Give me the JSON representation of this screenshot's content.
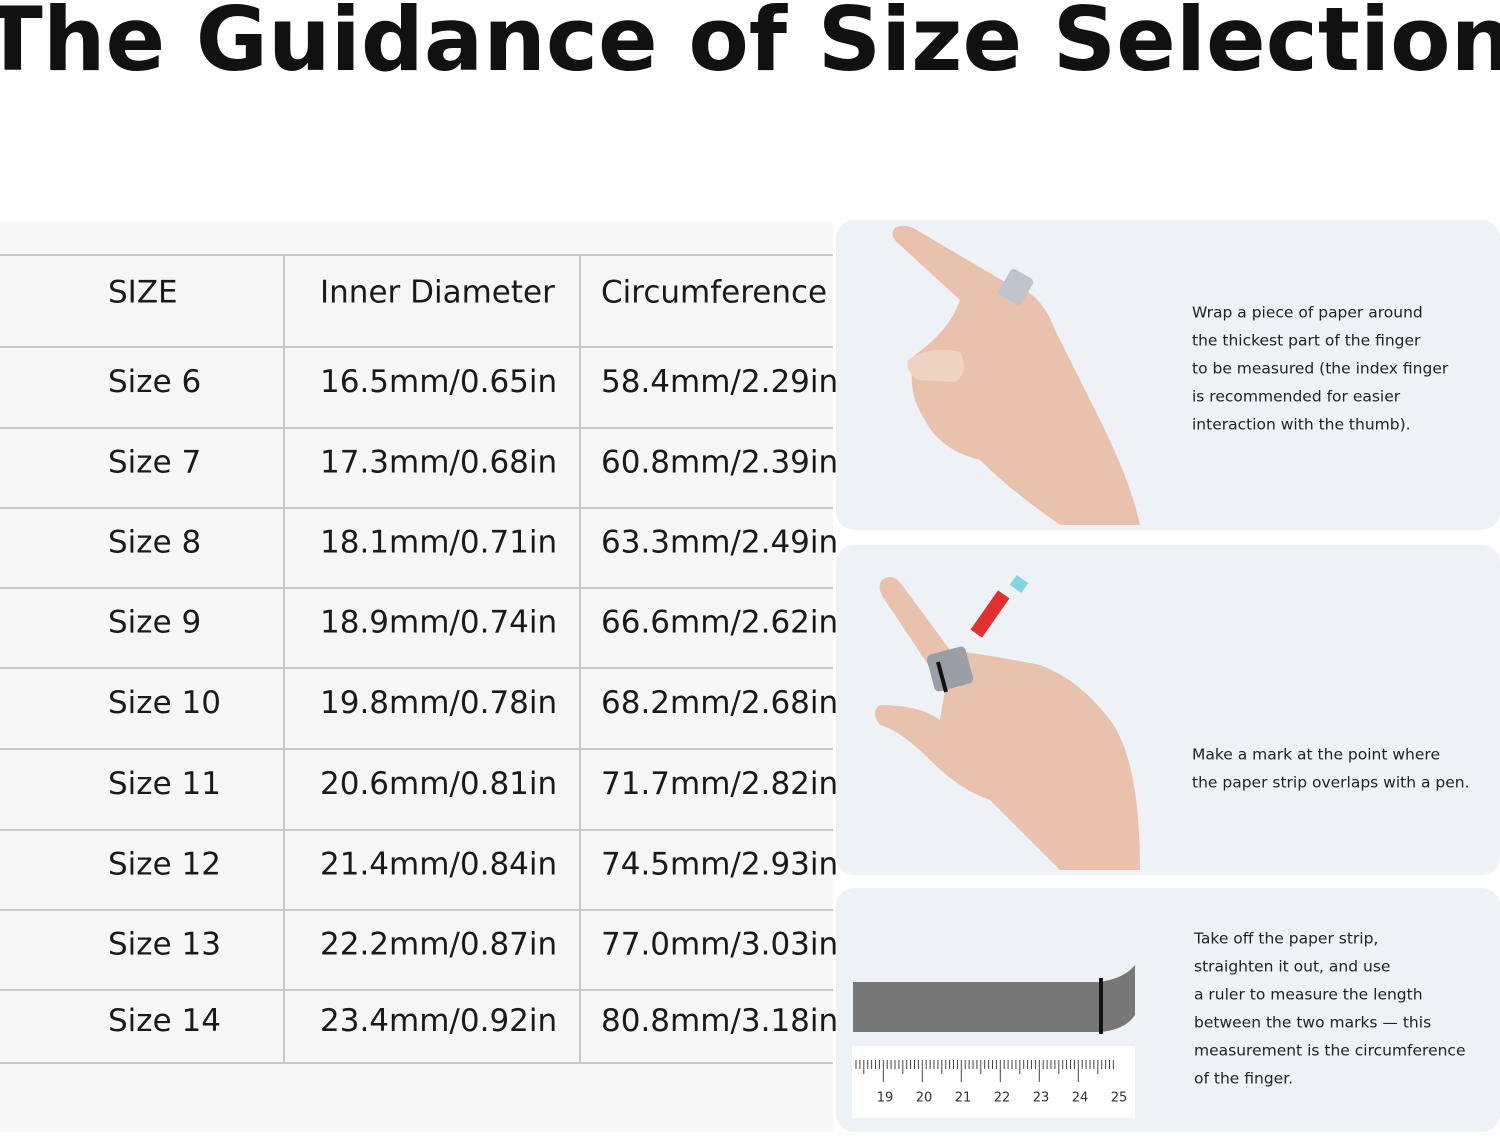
{
  "title": "The Guidance of Size Selection",
  "table": {
    "header": [
      "SIZE",
      "Inner Diameter",
      "Circumference"
    ],
    "rows": [
      [
        "Size 6",
        "16.5mm/0.65in",
        "58.4mm/2.29in"
      ],
      [
        "Size 7",
        "17.3mm/0.68in",
        "60.8mm/2.39in"
      ],
      [
        "Size 8",
        "18.1mm/0.71in",
        "63.3mm/2.49in"
      ],
      [
        "Size 9",
        "18.9mm/0.74in",
        "66.6mm/2.62in"
      ],
      [
        "Size 10",
        "19.8mm/0.78in",
        "68.2mm/2.68in"
      ],
      [
        "Size 11",
        "20.6mm/0.81in",
        "71.7mm/2.82in"
      ],
      [
        "Size 12",
        "21.4mm/0.84in",
        "74.5mm/2.93in"
      ],
      [
        "Size 13",
        "22.2mm/0.87in",
        "77.0mm/3.03in"
      ],
      [
        "Size 14",
        "23.4mm/0.92in",
        "80.8mm/3.18in"
      ]
    ]
  },
  "steps": [
    {
      "lines": [
        "Wrap a piece of paper around",
        "the thickest part of the finger",
        "to be measured (the index finger",
        "is recommended for easier",
        "interaction with the thumb)."
      ]
    },
    {
      "lines": [
        "Make a mark at the point where",
        "the paper strip overlaps with a pen."
      ]
    },
    {
      "lines": [
        "Take off the paper strip,",
        "straighten it out, and use",
        "a ruler to measure the length",
        "between the two marks — this",
        "measurement is the circumference",
        "of the finger."
      ]
    }
  ],
  "ruler": {
    "labels": [
      "19",
      "20",
      "21",
      "22",
      "23",
      "24",
      "25"
    ]
  }
}
